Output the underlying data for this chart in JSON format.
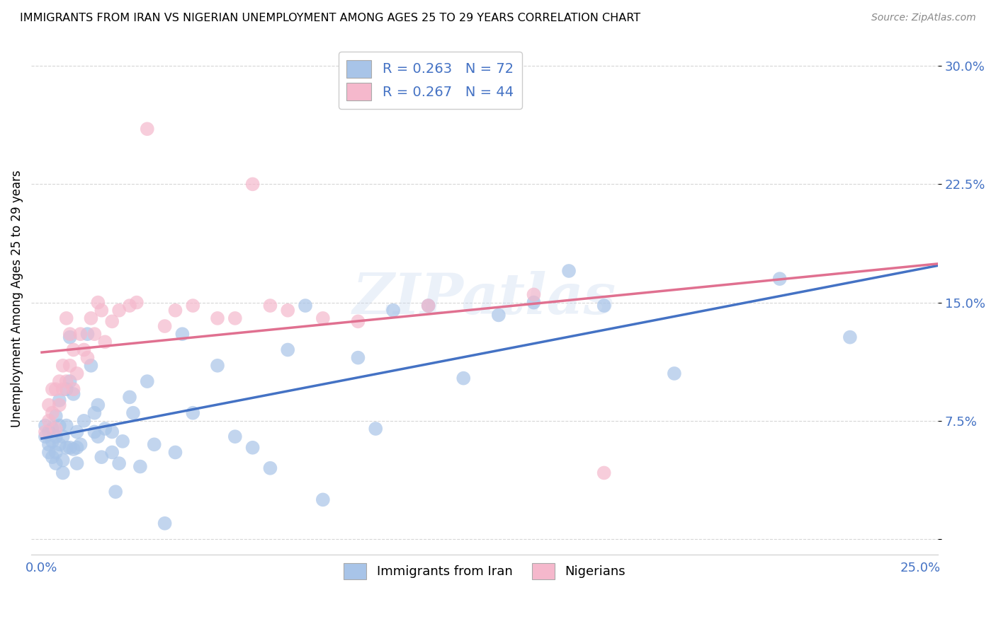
{
  "title": "IMMIGRANTS FROM IRAN VS NIGERIAN UNEMPLOYMENT AMONG AGES 25 TO 29 YEARS CORRELATION CHART",
  "source": "Source: ZipAtlas.com",
  "ylabel": "Unemployment Among Ages 25 to 29 years",
  "xlim": [
    -0.003,
    0.255
  ],
  "ylim": [
    -0.01,
    0.315
  ],
  "iran_R": 0.263,
  "iran_N": 72,
  "nigerian_R": 0.267,
  "nigerian_N": 44,
  "iran_color": "#A8C4E8",
  "nigeria_color": "#F5B8CC",
  "iran_line_color": "#4472C4",
  "nigeria_line_color": "#E07090",
  "iran_x": [
    0.001,
    0.001,
    0.002,
    0.002,
    0.002,
    0.003,
    0.003,
    0.003,
    0.004,
    0.004,
    0.004,
    0.004,
    0.005,
    0.005,
    0.005,
    0.006,
    0.006,
    0.006,
    0.007,
    0.007,
    0.007,
    0.008,
    0.008,
    0.008,
    0.009,
    0.009,
    0.01,
    0.01,
    0.01,
    0.011,
    0.012,
    0.013,
    0.014,
    0.015,
    0.015,
    0.016,
    0.016,
    0.017,
    0.018,
    0.02,
    0.02,
    0.021,
    0.022,
    0.023,
    0.025,
    0.026,
    0.028,
    0.03,
    0.032,
    0.035,
    0.038,
    0.04,
    0.043,
    0.05,
    0.055,
    0.06,
    0.065,
    0.07,
    0.075,
    0.08,
    0.09,
    0.095,
    0.1,
    0.11,
    0.12,
    0.13,
    0.14,
    0.15,
    0.16,
    0.18,
    0.21,
    0.23
  ],
  "iran_y": [
    0.072,
    0.065,
    0.06,
    0.068,
    0.055,
    0.07,
    0.062,
    0.052,
    0.078,
    0.065,
    0.055,
    0.048,
    0.088,
    0.072,
    0.06,
    0.065,
    0.05,
    0.042,
    0.095,
    0.072,
    0.058,
    0.1,
    0.128,
    0.058,
    0.092,
    0.057,
    0.068,
    0.058,
    0.048,
    0.06,
    0.075,
    0.13,
    0.11,
    0.068,
    0.08,
    0.085,
    0.065,
    0.052,
    0.07,
    0.055,
    0.068,
    0.03,
    0.048,
    0.062,
    0.09,
    0.08,
    0.046,
    0.1,
    0.06,
    0.01,
    0.055,
    0.13,
    0.08,
    0.11,
    0.065,
    0.058,
    0.045,
    0.12,
    0.148,
    0.025,
    0.115,
    0.07,
    0.145,
    0.148,
    0.102,
    0.142,
    0.15,
    0.17,
    0.148,
    0.105,
    0.165,
    0.128
  ],
  "nigeria_x": [
    0.001,
    0.002,
    0.002,
    0.003,
    0.003,
    0.004,
    0.004,
    0.005,
    0.005,
    0.006,
    0.006,
    0.007,
    0.007,
    0.008,
    0.008,
    0.009,
    0.009,
    0.01,
    0.011,
    0.012,
    0.013,
    0.014,
    0.015,
    0.016,
    0.017,
    0.018,
    0.02,
    0.022,
    0.025,
    0.027,
    0.03,
    0.035,
    0.038,
    0.043,
    0.05,
    0.055,
    0.06,
    0.065,
    0.07,
    0.08,
    0.09,
    0.11,
    0.14,
    0.16
  ],
  "nigeria_y": [
    0.068,
    0.075,
    0.085,
    0.08,
    0.095,
    0.095,
    0.07,
    0.085,
    0.1,
    0.11,
    0.095,
    0.1,
    0.14,
    0.11,
    0.13,
    0.095,
    0.12,
    0.105,
    0.13,
    0.12,
    0.115,
    0.14,
    0.13,
    0.15,
    0.145,
    0.125,
    0.138,
    0.145,
    0.148,
    0.15,
    0.26,
    0.135,
    0.145,
    0.148,
    0.14,
    0.14,
    0.225,
    0.148,
    0.145,
    0.14,
    0.138,
    0.148,
    0.155,
    0.042
  ]
}
